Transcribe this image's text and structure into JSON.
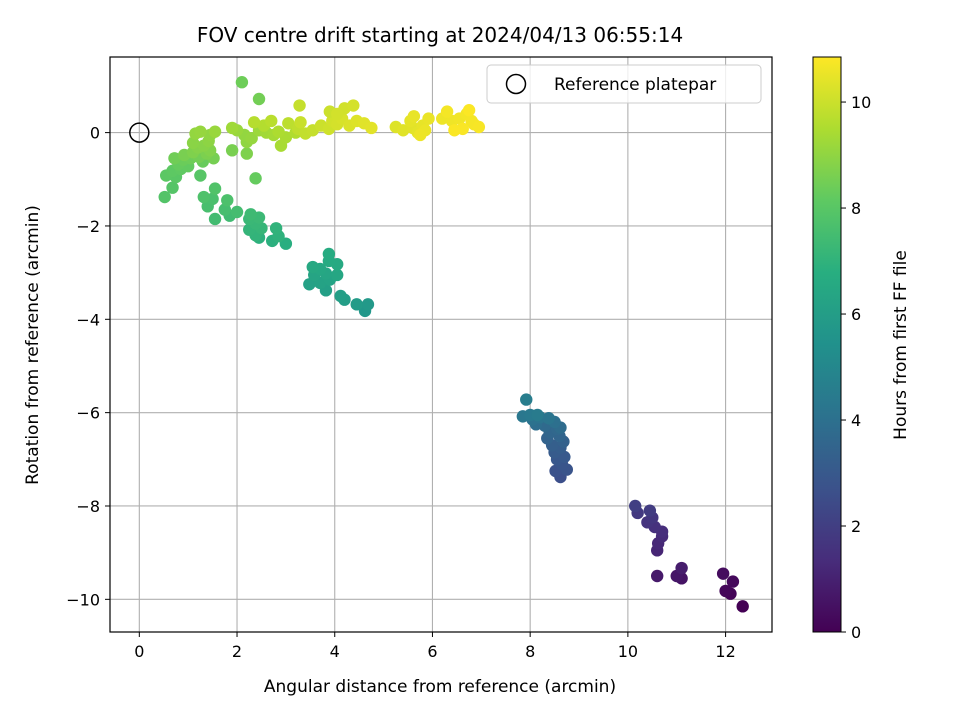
{
  "chart_data": {
    "type": "scatter",
    "title": "FOV centre drift starting at 2024/04/13 06:55:14",
    "xlabel": "Angular distance from reference (arcmin)",
    "ylabel": "Rotation from reference (arcmin)",
    "xlim": [
      -0.6,
      12.95
    ],
    "ylim": [
      -10.7,
      1.62
    ],
    "xticks": [
      0,
      2,
      4,
      6,
      8,
      10,
      12
    ],
    "yticks": [
      -10,
      -8,
      -6,
      -4,
      -2,
      0
    ],
    "xtick_labels": [
      "0",
      "2",
      "4",
      "6",
      "8",
      "10",
      "12"
    ],
    "ytick_labels": [
      "−10",
      "−8",
      "−6",
      "−4",
      "−2",
      "0"
    ],
    "grid": true,
    "legend": {
      "position": "top-right",
      "entries": [
        "Reference platepar"
      ]
    },
    "colorbar": {
      "label": "Hours from first FF file",
      "colormap": "viridis",
      "range": [
        0,
        10.85
      ],
      "ticks": [
        0,
        2,
        4,
        6,
        8,
        10
      ],
      "tick_labels": [
        "0",
        "2",
        "4",
        "6",
        "8",
        "10"
      ]
    },
    "reference_point": {
      "x": 0,
      "y": 0,
      "label": "Reference platepar"
    },
    "points": [
      [
        12.35,
        -10.15,
        0.0
      ],
      [
        12.1,
        -9.88,
        0.1
      ],
      [
        12.0,
        -9.82,
        0.18
      ],
      [
        12.15,
        -9.62,
        0.26
      ],
      [
        11.95,
        -9.45,
        0.35
      ],
      [
        11.1,
        -9.55,
        0.55
      ],
      [
        11.0,
        -9.5,
        0.65
      ],
      [
        10.6,
        -9.5,
        0.75
      ],
      [
        11.1,
        -9.33,
        0.85
      ],
      [
        10.6,
        -8.95,
        1.1
      ],
      [
        10.62,
        -8.8,
        1.2
      ],
      [
        10.7,
        -8.65,
        1.3
      ],
      [
        10.7,
        -8.55,
        1.4
      ],
      [
        10.55,
        -8.45,
        1.5
      ],
      [
        10.4,
        -8.35,
        1.6
      ],
      [
        10.5,
        -8.25,
        1.7
      ],
      [
        10.2,
        -8.15,
        1.8
      ],
      [
        10.45,
        -8.1,
        1.9
      ],
      [
        10.15,
        -8.0,
        2.0
      ],
      [
        8.62,
        -7.38,
        2.6
      ],
      [
        8.52,
        -7.25,
        2.7
      ],
      [
        8.75,
        -7.22,
        2.78
      ],
      [
        8.65,
        -7.1,
        2.86
      ],
      [
        8.55,
        -7.0,
        2.94
      ],
      [
        8.7,
        -6.95,
        3.02
      ],
      [
        8.5,
        -6.85,
        3.1
      ],
      [
        8.62,
        -6.75,
        3.18
      ],
      [
        8.45,
        -6.7,
        3.26
      ],
      [
        8.68,
        -6.62,
        3.34
      ],
      [
        8.35,
        -6.55,
        3.42
      ],
      [
        8.6,
        -6.5,
        3.5
      ],
      [
        8.4,
        -6.42,
        3.58
      ],
      [
        8.55,
        -6.35,
        3.66
      ],
      [
        8.3,
        -6.28,
        3.74
      ],
      [
        8.62,
        -6.32,
        3.82
      ],
      [
        8.12,
        -6.25,
        3.9
      ],
      [
        8.5,
        -6.2,
        3.98
      ],
      [
        8.05,
        -6.15,
        4.06
      ],
      [
        8.2,
        -6.1,
        4.14
      ],
      [
        8.38,
        -6.12,
        4.22
      ],
      [
        7.85,
        -6.08,
        4.3
      ],
      [
        8.0,
        -6.05,
        4.38
      ],
      [
        8.15,
        -6.05,
        4.46
      ],
      [
        7.92,
        -5.72,
        4.55
      ],
      [
        4.62,
        -3.82,
        5.7
      ],
      [
        4.68,
        -3.68,
        5.8
      ],
      [
        4.45,
        -3.68,
        5.9
      ],
      [
        4.2,
        -3.58,
        6.0
      ],
      [
        4.12,
        -3.5,
        6.05
      ],
      [
        3.82,
        -3.38,
        6.1
      ],
      [
        3.48,
        -3.25,
        6.15
      ],
      [
        3.7,
        -3.22,
        6.2
      ],
      [
        3.9,
        -3.15,
        6.25
      ],
      [
        3.58,
        -3.05,
        6.3
      ],
      [
        3.82,
        -3.02,
        6.35
      ],
      [
        4.05,
        -3.05,
        6.4
      ],
      [
        3.7,
        -2.92,
        6.45
      ],
      [
        3.55,
        -2.88,
        6.5
      ],
      [
        4.05,
        -2.82,
        6.55
      ],
      [
        3.88,
        -2.75,
        6.6
      ],
      [
        3.88,
        -2.6,
        6.65
      ],
      [
        3.0,
        -2.38,
        6.8
      ],
      [
        2.72,
        -2.32,
        6.85
      ],
      [
        2.45,
        -2.25,
        6.9
      ],
      [
        2.85,
        -2.22,
        6.95
      ],
      [
        2.8,
        -2.05,
        7.0
      ],
      [
        2.38,
        -2.2,
        7.05
      ],
      [
        2.25,
        -2.08,
        7.1
      ],
      [
        2.5,
        -2.05,
        7.15
      ],
      [
        2.38,
        -1.95,
        7.2
      ],
      [
        2.25,
        -1.85,
        7.25
      ],
      [
        2.45,
        -1.82,
        7.3
      ],
      [
        2.28,
        -1.75,
        7.35
      ],
      [
        1.85,
        -1.78,
        7.4
      ],
      [
        1.55,
        -1.85,
        7.45
      ],
      [
        2.0,
        -1.7,
        7.5
      ],
      [
        1.75,
        -1.65,
        7.55
      ],
      [
        1.4,
        -1.58,
        7.6
      ],
      [
        1.5,
        -1.42,
        7.65
      ],
      [
        1.8,
        -1.45,
        7.7
      ],
      [
        1.32,
        -1.38,
        7.75
      ],
      [
        1.55,
        -1.2,
        7.8
      ],
      [
        0.52,
        -1.38,
        7.85
      ],
      [
        0.68,
        -1.18,
        7.9
      ],
      [
        1.25,
        -0.92,
        7.95
      ],
      [
        0.75,
        -0.95,
        8.0
      ],
      [
        0.55,
        -0.92,
        8.05
      ],
      [
        0.68,
        -0.82,
        8.1
      ],
      [
        0.85,
        -0.78,
        8.15
      ],
      [
        1.0,
        -0.72,
        8.2
      ],
      [
        0.8,
        -0.68,
        8.25
      ],
      [
        1.3,
        -0.62,
        8.3
      ],
      [
        0.9,
        -0.58,
        8.35
      ],
      [
        1.05,
        -0.55,
        8.4
      ],
      [
        0.72,
        -0.55,
        8.45
      ],
      [
        1.22,
        -0.52,
        8.5
      ],
      [
        1.52,
        -0.55,
        8.55
      ],
      [
        0.92,
        -0.48,
        8.6
      ],
      [
        1.38,
        -0.45,
        8.65
      ],
      [
        1.1,
        -0.42,
        8.7
      ],
      [
        1.45,
        -0.38,
        8.75
      ],
      [
        1.2,
        -0.32,
        8.8
      ],
      [
        1.32,
        -0.28,
        8.85
      ],
      [
        1.1,
        -0.22,
        8.9
      ],
      [
        1.42,
        -0.18,
        8.95
      ],
      [
        1.45,
        -0.05,
        9.0
      ],
      [
        1.15,
        -0.02,
        9.05
      ],
      [
        1.25,
        0.02,
        9.1
      ],
      [
        1.55,
        0.02,
        9.15
      ],
      [
        2.38,
        -0.98,
        8.25
      ],
      [
        1.9,
        -0.38,
        8.6
      ],
      [
        2.2,
        -0.45,
        8.7
      ],
      [
        2.45,
        0.72,
        8.5
      ],
      [
        2.1,
        1.08,
        8.4
      ],
      [
        2.2,
        -0.2,
        9.0
      ],
      [
        2.15,
        -0.05,
        9.05
      ],
      [
        2.3,
        -0.12,
        9.1
      ],
      [
        2.0,
        0.05,
        9.15
      ],
      [
        2.45,
        0.05,
        9.2
      ],
      [
        1.9,
        0.1,
        9.25
      ],
      [
        2.6,
        0.0,
        9.3
      ],
      [
        2.75,
        -0.05,
        9.35
      ],
      [
        2.9,
        -0.28,
        9.4
      ],
      [
        3.0,
        -0.1,
        9.45
      ],
      [
        2.85,
        0.02,
        9.5
      ],
      [
        3.2,
        0.0,
        9.55
      ],
      [
        2.55,
        0.15,
        9.6
      ],
      [
        2.35,
        0.22,
        9.65
      ],
      [
        2.7,
        0.25,
        9.7
      ],
      [
        3.05,
        0.2,
        9.75
      ],
      [
        3.25,
        0.08,
        9.8
      ],
      [
        3.4,
        -0.02,
        9.85
      ],
      [
        3.55,
        0.05,
        9.9
      ],
      [
        3.3,
        0.22,
        9.95
      ],
      [
        3.72,
        0.15,
        10.0
      ],
      [
        3.88,
        0.08,
        10.05
      ],
      [
        3.95,
        0.25,
        10.1
      ],
      [
        4.05,
        0.18,
        10.15
      ],
      [
        4.15,
        0.3,
        10.2
      ],
      [
        4.3,
        0.15,
        10.25
      ],
      [
        4.45,
        0.25,
        10.3
      ],
      [
        4.6,
        0.2,
        10.35
      ],
      [
        4.75,
        0.1,
        10.4
      ],
      [
        3.28,
        0.58,
        9.9
      ],
      [
        3.9,
        0.45,
        10.0
      ],
      [
        4.2,
        0.52,
        10.1
      ],
      [
        4.38,
        0.58,
        10.15
      ],
      [
        4.05,
        0.4,
        10.12
      ],
      [
        5.25,
        0.12,
        10.3
      ],
      [
        5.4,
        0.05,
        10.35
      ],
      [
        5.6,
        0.1,
        10.4
      ],
      [
        5.7,
        0.0,
        10.42
      ],
      [
        5.55,
        0.25,
        10.45
      ],
      [
        5.8,
        0.15,
        10.48
      ],
      [
        5.62,
        0.35,
        10.5
      ],
      [
        5.92,
        0.3,
        10.52
      ],
      [
        5.85,
        0.05,
        10.55
      ],
      [
        5.75,
        -0.05,
        10.58
      ],
      [
        6.2,
        0.3,
        10.6
      ],
      [
        6.4,
        0.25,
        10.62
      ],
      [
        6.55,
        0.3,
        10.65
      ],
      [
        6.7,
        0.4,
        10.68
      ],
      [
        6.8,
        0.25,
        10.7
      ],
      [
        6.85,
        0.18,
        10.72
      ],
      [
        6.95,
        0.12,
        10.75
      ],
      [
        6.62,
        0.08,
        10.78
      ],
      [
        6.45,
        0.05,
        10.8
      ],
      [
        6.75,
        0.48,
        10.82
      ],
      [
        6.3,
        0.45,
        10.7
      ]
    ]
  }
}
